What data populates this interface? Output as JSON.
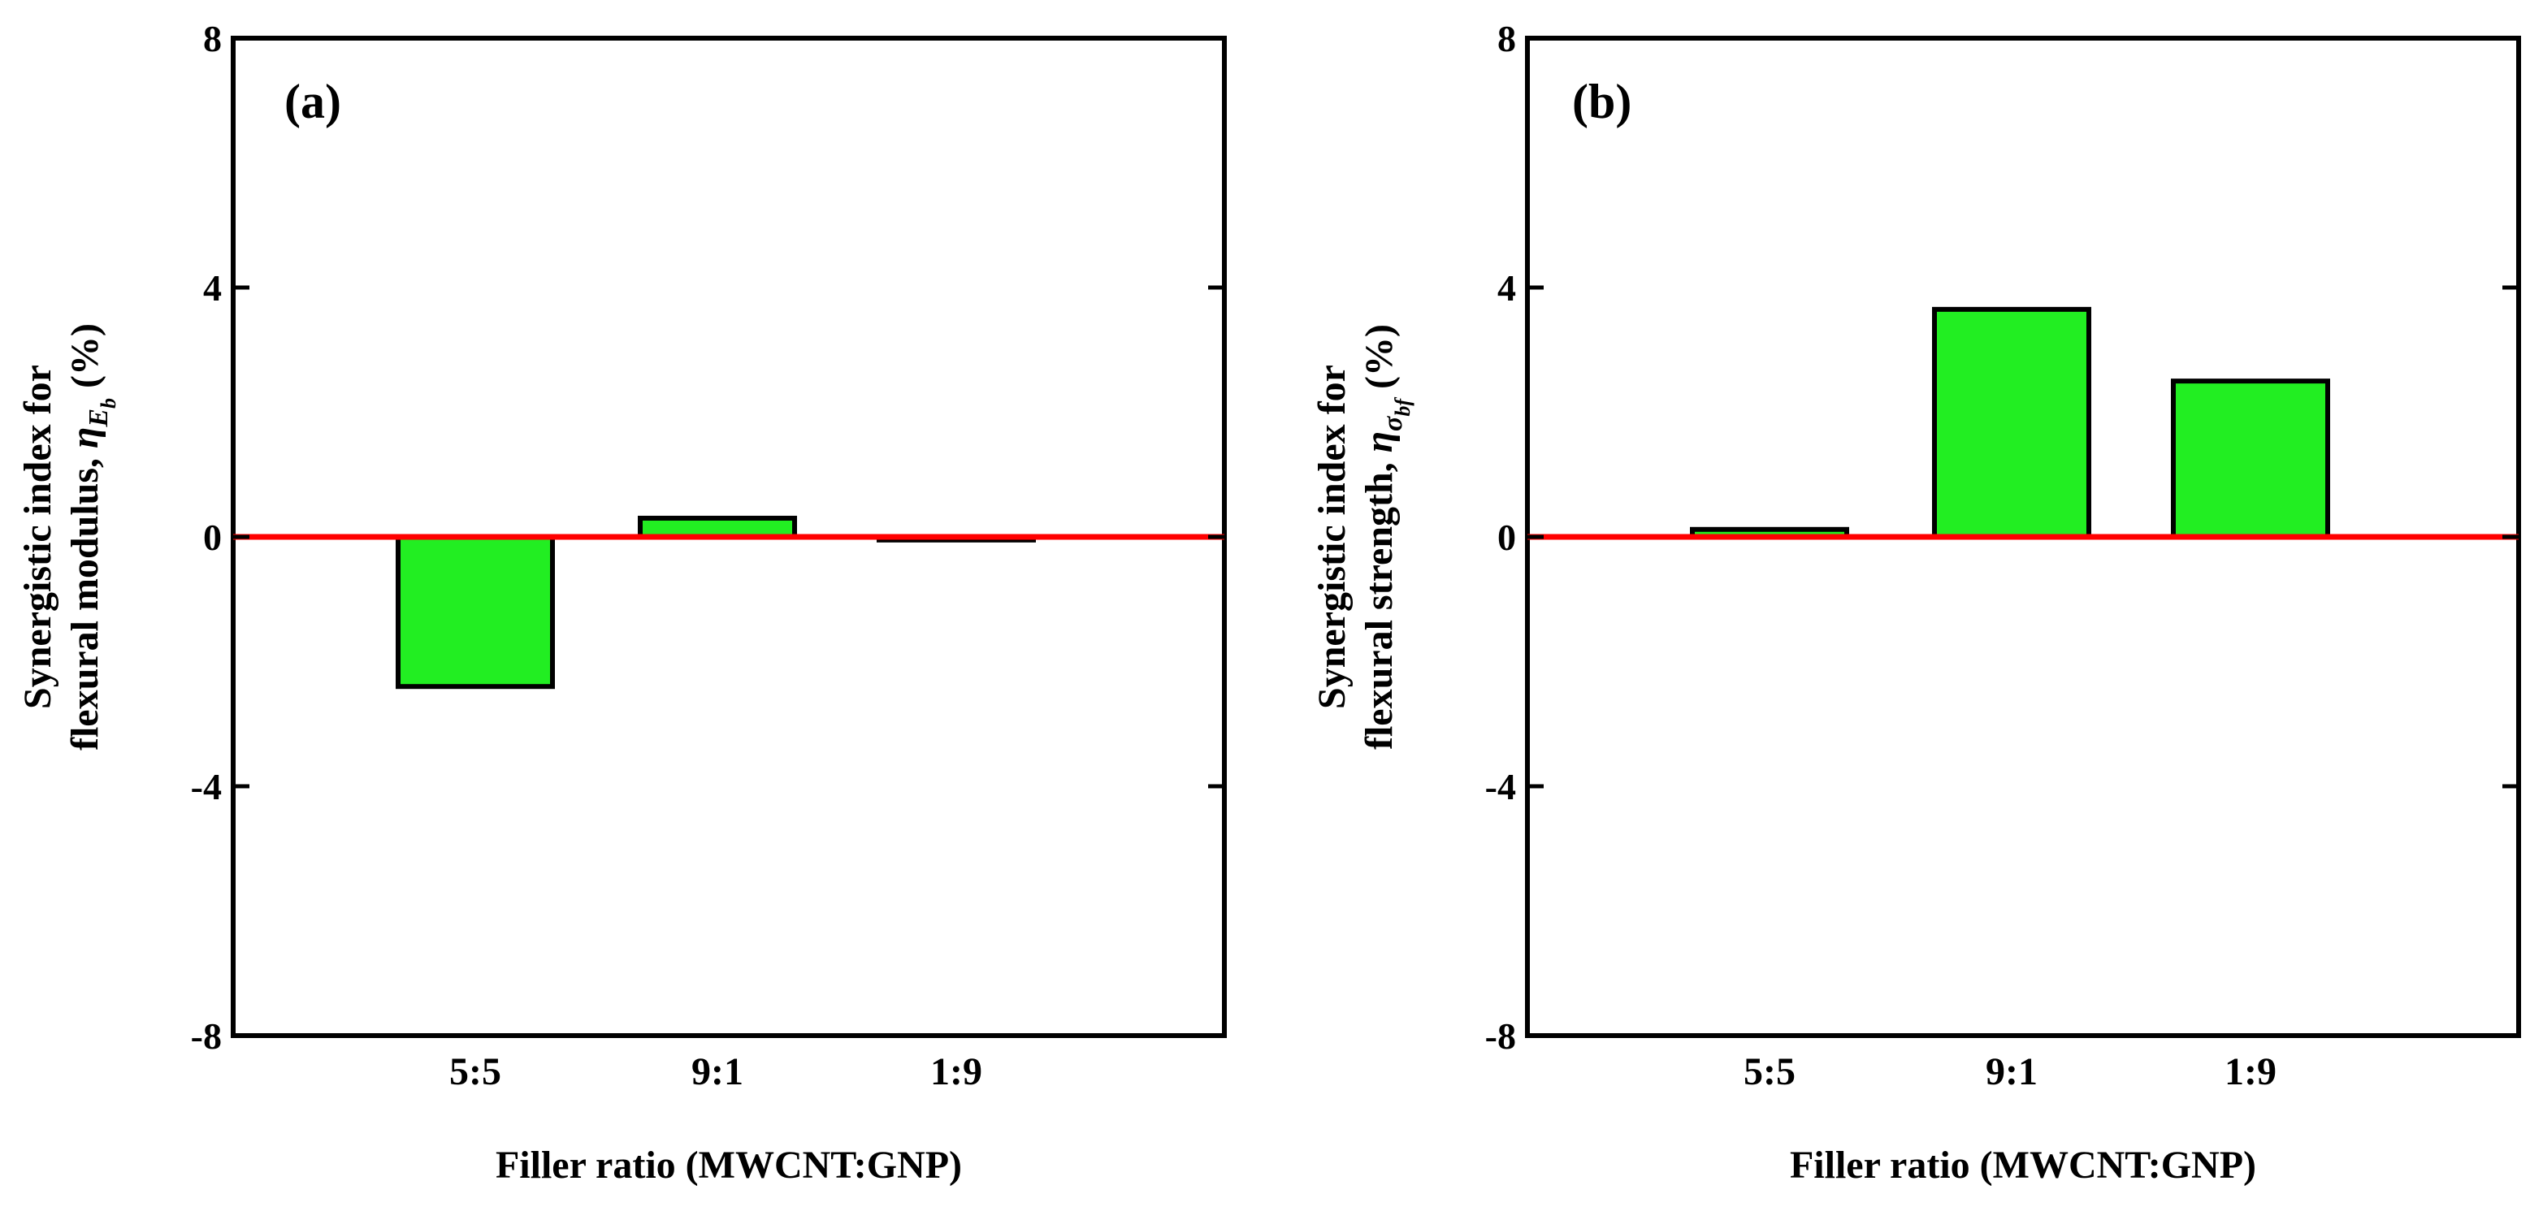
{
  "chart_data": [
    {
      "type": "bar",
      "panel_label": "(a)",
      "categories": [
        "5:5",
        "9:1",
        "1:9"
      ],
      "values": [
        -2.4,
        0.3,
        -0.05
      ],
      "ylim": [
        -8,
        8
      ],
      "yticks": [
        8,
        4,
        0,
        -4,
        -8
      ],
      "ytick_labels": [
        "8",
        "4",
        "0",
        "-4",
        "-8"
      ],
      "ylabel_line1": "Synergistic index for",
      "ylabel_line2": "flexural modulus, ",
      "ylabel_symbol": "η",
      "ylabel_sub": "E",
      "ylabel_subsub": "b",
      "ylabel_unit": " (%)",
      "xlabel": "Filler ratio (MWCNT:GNP)",
      "reference_line": 0
    },
    {
      "type": "bar",
      "panel_label": "(b)",
      "categories": [
        "5:5",
        "9:1",
        "1:9"
      ],
      "values": [
        0.12,
        3.65,
        2.5
      ],
      "ylim": [
        -8,
        8
      ],
      "yticks": [
        8,
        4,
        0,
        -4,
        -8
      ],
      "ytick_labels": [
        "8",
        "4",
        "0",
        "-4",
        "-8"
      ],
      "ylabel_line1": "Synergistic index for",
      "ylabel_line2": "flexural strength, ",
      "ylabel_symbol": "η",
      "ylabel_sub": "σ",
      "ylabel_subsub": "bf",
      "ylabel_unit": " (%)",
      "xlabel": "Filler ratio (MWCNT:GNP)",
      "reference_line": 0
    }
  ],
  "colors": {
    "bar_fill": "#22ee22",
    "bar_stroke": "#000000",
    "reference_line": "#ff0000",
    "axes": "#000000"
  }
}
